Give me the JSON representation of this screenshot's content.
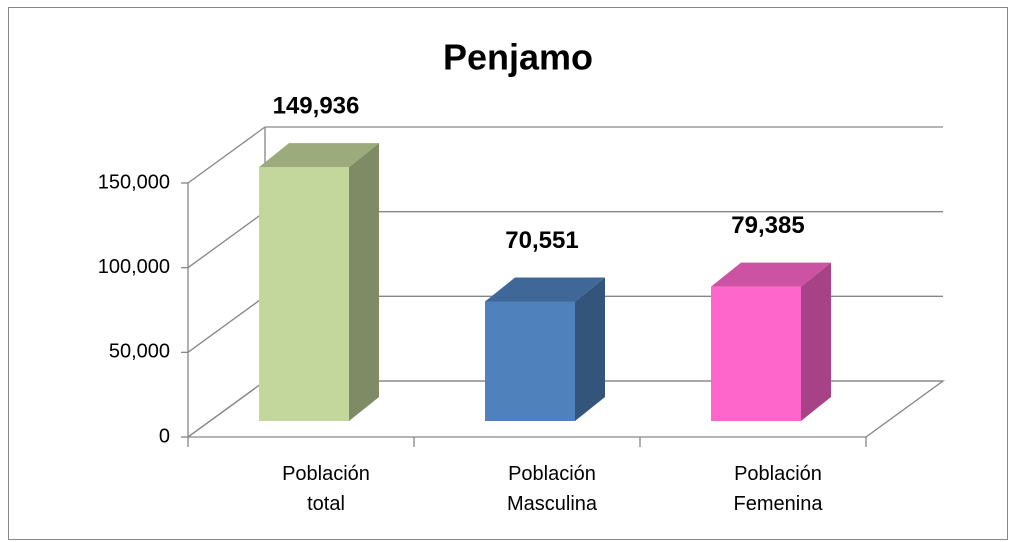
{
  "chart_data": {
    "type": "bar3d",
    "title": "Penjamo",
    "categories": [
      "Población total",
      "Población Masculina",
      "Población Femenina"
    ],
    "values": [
      149936,
      70551,
      79385
    ],
    "value_labels": [
      "149,936",
      "70,551",
      "79,385"
    ],
    "colors": [
      "#c3d69b",
      "#4f81bd",
      "#ff66cc"
    ],
    "ylim": [
      0,
      150000
    ],
    "yticks": [
      0,
      {
        "value": 50000,
        "label": "50,000"
      },
      {
        "value": 100000,
        "label": "100,000"
      },
      {
        "value": 150000,
        "label": "150,000"
      }
    ],
    "grid": true
  }
}
